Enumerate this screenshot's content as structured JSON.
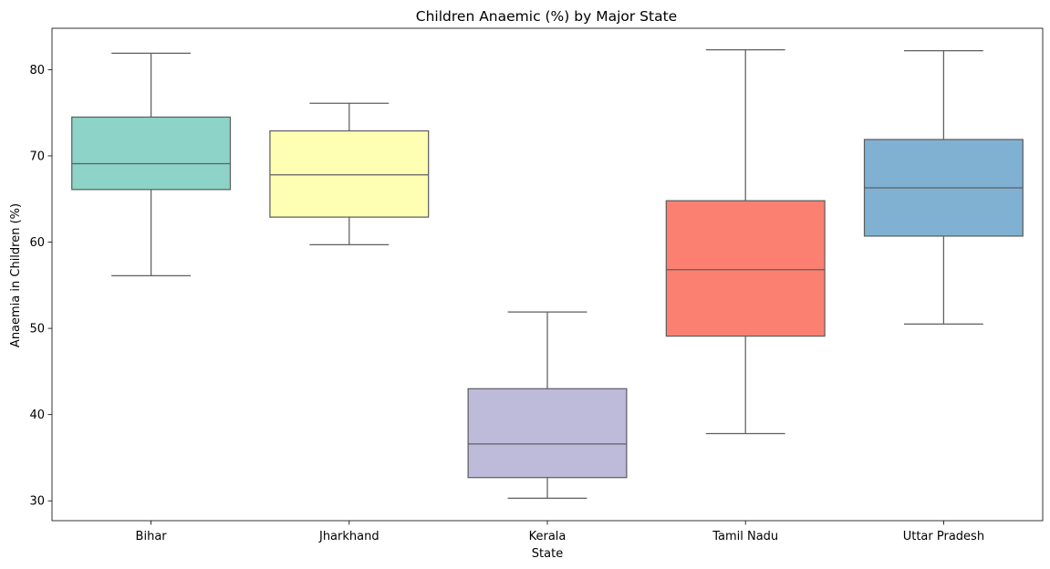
{
  "chart_data": {
    "type": "box",
    "title": "Children Anaemic (%) by Major State",
    "xlabel": "State",
    "ylabel": "Anaemia in Children (%)",
    "ylim": [
      27.7,
      84.8
    ],
    "yticks": [
      30,
      40,
      50,
      60,
      70,
      80
    ],
    "grid": false,
    "categories": [
      "Bihar",
      "Jharkhand",
      "Kerala",
      "Tamil Nadu",
      "Uttar Pradesh"
    ],
    "boxes": [
      {
        "category": "Bihar",
        "whisker_low": 56.1,
        "q1": 66.1,
        "median": 69.1,
        "q3": 74.5,
        "whisker_high": 81.9,
        "color": "#8dd3c7"
      },
      {
        "category": "Jharkhand",
        "whisker_low": 59.7,
        "q1": 62.9,
        "median": 67.8,
        "q3": 72.9,
        "whisker_high": 76.1,
        "color": "#ffffb3"
      },
      {
        "category": "Kerala",
        "whisker_low": 30.3,
        "q1": 32.7,
        "median": 36.6,
        "q3": 43.0,
        "whisker_high": 51.9,
        "color": "#bebada"
      },
      {
        "category": "Tamil Nadu",
        "whisker_low": 37.8,
        "q1": 49.1,
        "median": 56.8,
        "q3": 64.8,
        "whisker_high": 82.3,
        "color": "#fb8072"
      },
      {
        "category": "Uttar Pradesh",
        "whisker_low": 50.5,
        "q1": 60.7,
        "median": 66.3,
        "q3": 71.9,
        "whisker_high": 82.2,
        "color": "#80b1d3"
      }
    ],
    "line_color": "#5f5f5f"
  }
}
